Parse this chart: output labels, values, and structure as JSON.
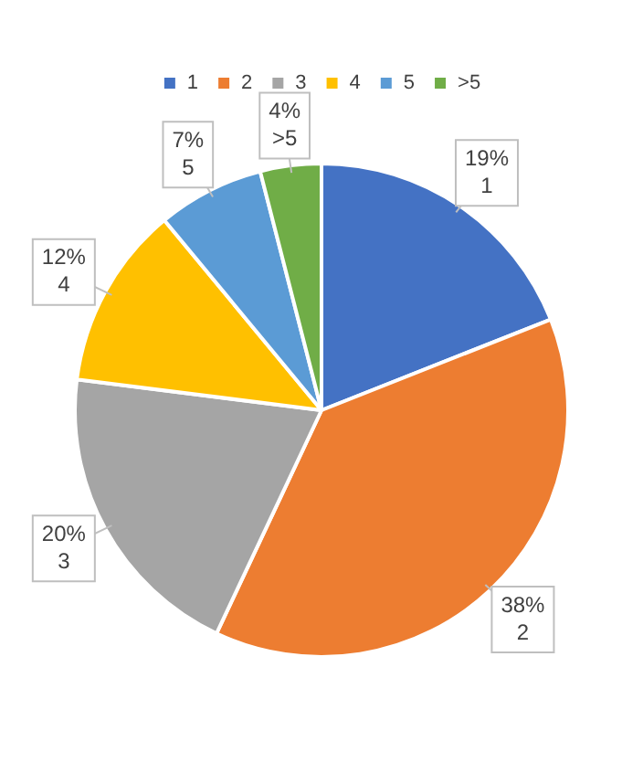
{
  "chart_data": {
    "type": "pie",
    "categories": [
      "1",
      "2",
      "3",
      "4",
      "5",
      ">5"
    ],
    "values": [
      19,
      38,
      20,
      12,
      7,
      4
    ],
    "colors": [
      "#4472c4",
      "#ed7d31",
      "#a5a5a5",
      "#ffc000",
      "#5b9bd5",
      "#70ad47"
    ],
    "value_labels": [
      "19%",
      "38%",
      "20%",
      "12%",
      "7%",
      "4%"
    ],
    "legend": "top"
  }
}
